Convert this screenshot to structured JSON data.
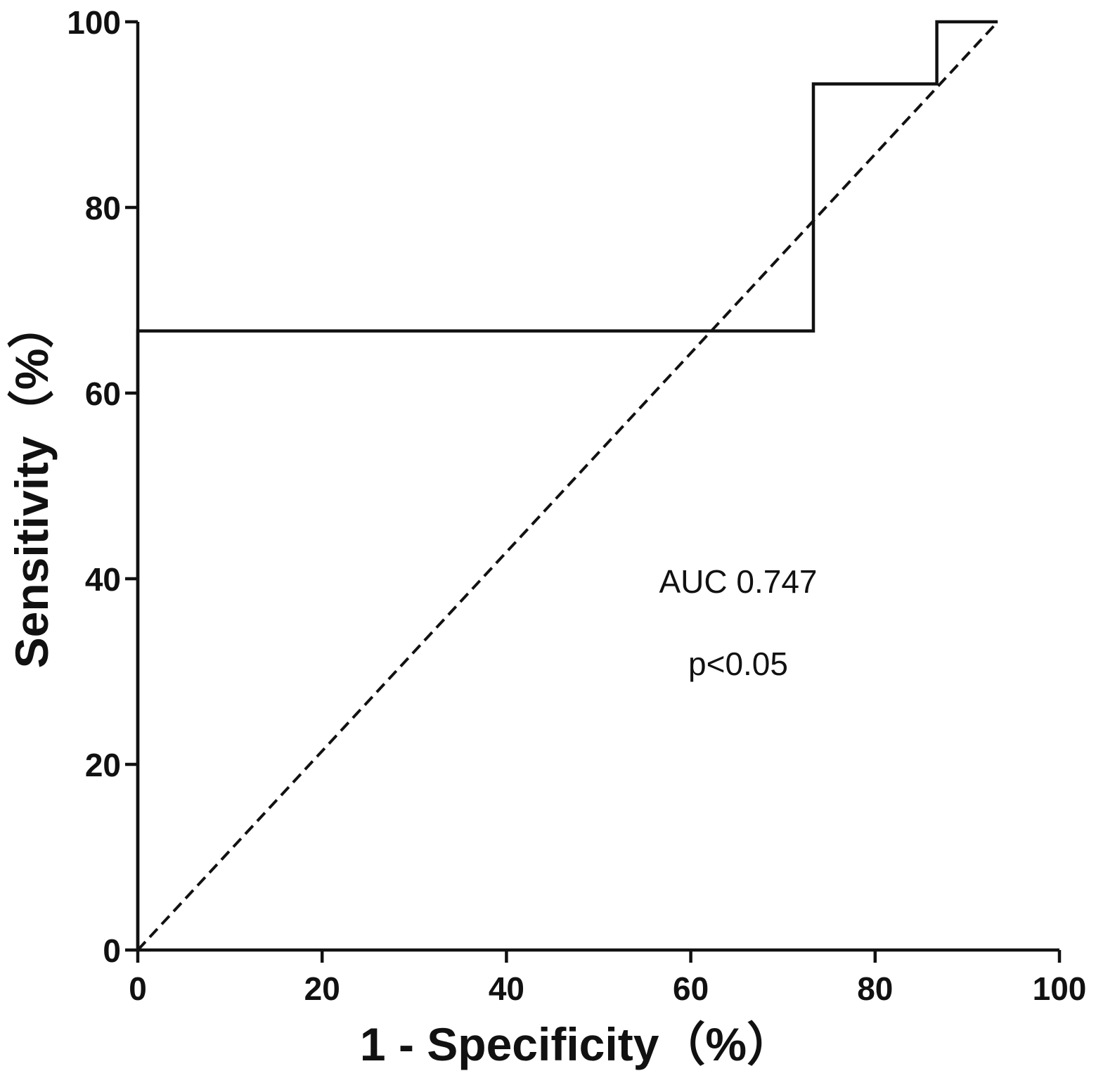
{
  "chart_data": {
    "type": "line",
    "title": "",
    "xlabel": "1 - Specificity（%）",
    "ylabel": "Sensitivity（%）",
    "xlim": [
      0,
      100
    ],
    "ylim": [
      0,
      100
    ],
    "xticks": [
      "0",
      "20",
      "40",
      "60",
      "80",
      "100"
    ],
    "yticks": [
      "0",
      "20",
      "40",
      "60",
      "80",
      "100"
    ],
    "grid": false,
    "legend": "none",
    "series": [
      {
        "style": "solid step",
        "x": [
          0,
          0,
          73.3,
          73.3,
          86.7,
          86.7,
          93.3
        ],
        "y": [
          0,
          66.7,
          66.7,
          93.3,
          93.3,
          100,
          100
        ]
      },
      {
        "style": "dashed reference",
        "x": [
          0,
          93.3
        ],
        "y": [
          0,
          100
        ]
      }
    ],
    "annotations": [
      "AUC 0.747",
      "p<0.05"
    ]
  }
}
